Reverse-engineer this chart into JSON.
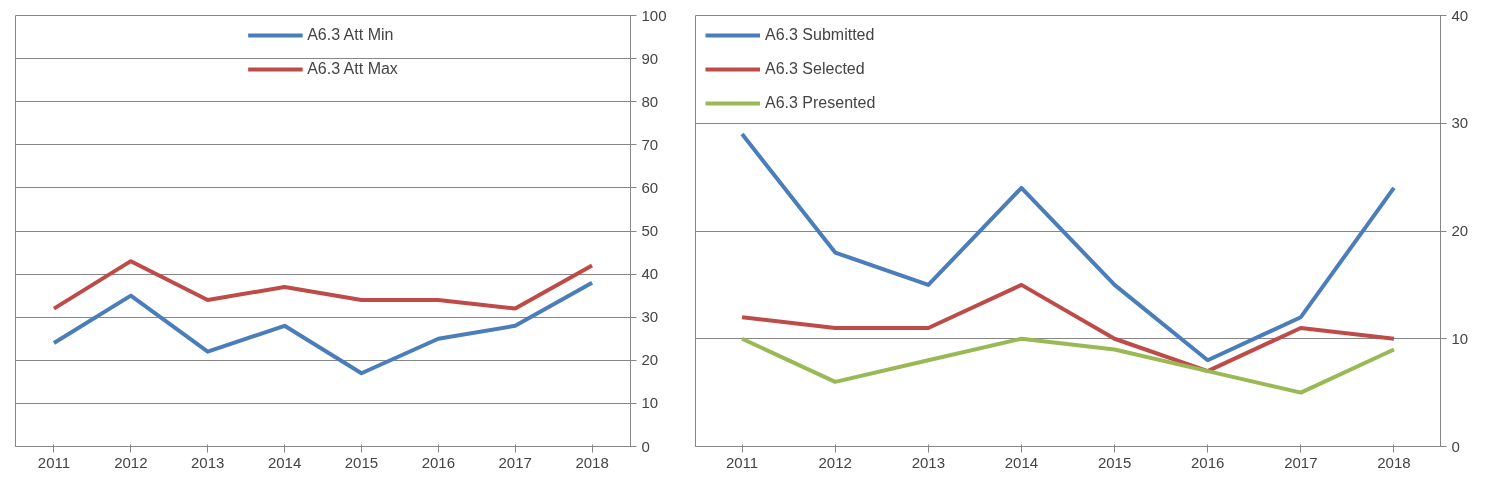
{
  "chart_data": [
    {
      "type": "line",
      "categories": [
        "2011",
        "2012",
        "2013",
        "2014",
        "2015",
        "2016",
        "2017",
        "2018"
      ],
      "ylim": [
        0,
        100
      ],
      "yticks": [
        0,
        10,
        20,
        30,
        40,
        50,
        60,
        70,
        80,
        90,
        100
      ],
      "grid": "y",
      "legend": "top",
      "series": [
        {
          "name": "A6.3 Att Min",
          "color": "#4a7ebb",
          "values": [
            24,
            35,
            22,
            28,
            17,
            25,
            28,
            38
          ]
        },
        {
          "name": "A6.3 Att Max",
          "color": "#be4b48",
          "values": [
            32,
            43,
            34,
            37,
            34,
            34,
            32,
            42
          ]
        }
      ]
    },
    {
      "type": "line",
      "categories": [
        "2011",
        "2012",
        "2013",
        "2014",
        "2015",
        "2016",
        "2017",
        "2018"
      ],
      "ylim": [
        0,
        40
      ],
      "yticks": [
        0,
        10,
        20,
        30,
        40
      ],
      "grid": "y",
      "legend": "top left",
      "series": [
        {
          "name": "A6.3 Submitted",
          "color": "#4a7ebb",
          "values": [
            29,
            18,
            15,
            24,
            15,
            8,
            12,
            24
          ]
        },
        {
          "name": "A6.3 Selected",
          "color": "#be4b48",
          "values": [
            12,
            11,
            11,
            15,
            10,
            7,
            11,
            10
          ]
        },
        {
          "name": "A6.3 Presented",
          "color": "#98b954",
          "values": [
            10,
            6,
            8,
            10,
            9,
            7,
            5,
            9
          ]
        }
      ]
    }
  ]
}
